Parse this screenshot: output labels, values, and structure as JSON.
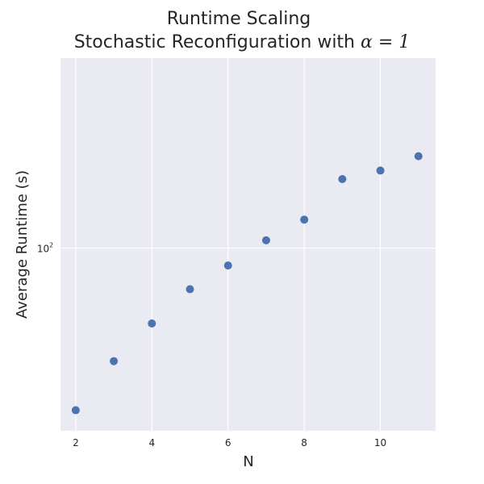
{
  "chart_data": {
    "type": "scatter",
    "title": "Runtime Scaling",
    "subtitle_prefix": "Stochastic Reconfiguration with ",
    "subtitle_math": "α = 1",
    "xlabel": "N",
    "ylabel": "Average Runtime (s)",
    "x_ticks": [
      "2",
      "4",
      "6",
      "8",
      "10"
    ],
    "y_tick_base": "10",
    "y_tick_exponent": "2",
    "y_scale": "log",
    "xlim": [
      1.6,
      11.45
    ],
    "ylim": [
      20.5,
      520
    ],
    "grid": true,
    "marker_color": "#4c72b0",
    "background_color": "#eaeaf2",
    "series": [
      {
        "x": [
          2,
          3,
          4,
          5,
          6,
          7,
          8,
          9,
          10,
          11
        ],
        "y": [
          24.5,
          37.5,
          52,
          70,
          86,
          107,
          128,
          182,
          196,
          222
        ]
      }
    ]
  }
}
